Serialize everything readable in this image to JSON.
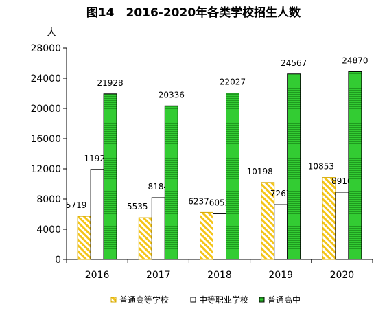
{
  "chart_data": {
    "type": "bar",
    "title": "图14　2016-2020年各类学校招生人数",
    "ylabel": "人",
    "xlabel": "",
    "categories": [
      "2016",
      "2017",
      "2018",
      "2019",
      "2020"
    ],
    "ylim": [
      0,
      28000
    ],
    "yticks": [
      0,
      4000,
      8000,
      12000,
      16000,
      20000,
      24000,
      28000
    ],
    "grid": false,
    "legend_position": "bottom",
    "series": [
      {
        "name": "普通高等学校",
        "values": [
          5719,
          5535,
          6237,
          10198,
          10853
        ],
        "color": "#f5c518",
        "pattern": "diagonal-stripes"
      },
      {
        "name": "中等职业学校",
        "values": [
          11928,
          8184,
          6052,
          7267,
          8910
        ],
        "color": "#ffffff",
        "pattern": "none"
      },
      {
        "name": "普通高中",
        "values": [
          21928,
          20336,
          22027,
          24567,
          24870
        ],
        "color": "#33cc33",
        "pattern": "horizontal-lines"
      }
    ]
  }
}
